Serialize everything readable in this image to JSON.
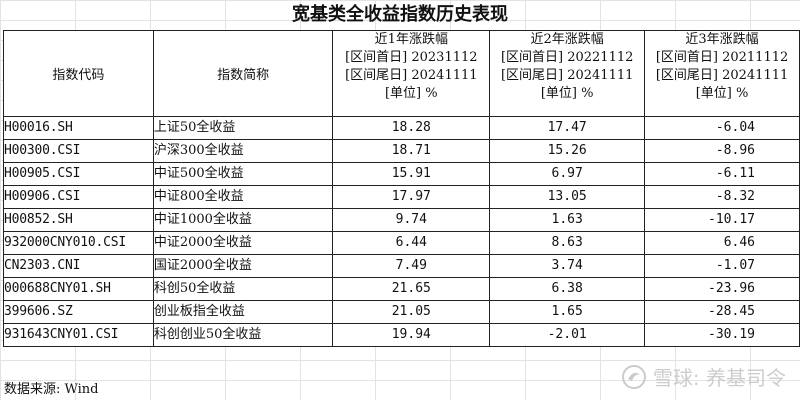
{
  "title": "宽基类全收益指数历史表现",
  "headers": {
    "code": "指数代码",
    "name": "指数简称",
    "periods": [
      {
        "label": "近1年涨跌幅",
        "start": "[区间首日] 20231112",
        "end": "[区间尾日] 20241111",
        "unit": "[单位] %"
      },
      {
        "label": "近2年涨跌幅",
        "start": "[区间首日] 20221112",
        "end": "[区间尾日] 20241111",
        "unit": "[单位] %"
      },
      {
        "label": "近3年涨跌幅",
        "start": "[区间首日] 20211112",
        "end": "[区间尾日] 20241111",
        "unit": "[单位] %"
      }
    ]
  },
  "rows": [
    {
      "code": "H00016.SH",
      "name": "上证50全收益",
      "y1": "18.28",
      "y2": "17.47",
      "y3": "-6.04"
    },
    {
      "code": "H00300.CSI",
      "name": "沪深300全收益",
      "y1": "18.71",
      "y2": "15.26",
      "y3": "-8.96"
    },
    {
      "code": "H00905.CSI",
      "name": "中证500全收益",
      "y1": "15.91",
      "y2": "6.97",
      "y3": "-6.11"
    },
    {
      "code": "H00906.CSI",
      "name": "中证800全收益",
      "y1": "17.97",
      "y2": "13.05",
      "y3": "-8.32"
    },
    {
      "code": "H00852.SH",
      "name": "中证1000全收益",
      "y1": "9.74",
      "y2": "1.63",
      "y3": "-10.17"
    },
    {
      "code": "932000CNY010.CSI",
      "name": "中证2000全收益",
      "y1": "6.44",
      "y2": "8.63",
      "y3": "6.46"
    },
    {
      "code": "CN2303.CNI",
      "name": "国证2000全收益",
      "y1": "7.49",
      "y2": "3.74",
      "y3": "-1.07"
    },
    {
      "code": "000688CNY01.SH",
      "name": "科创50全收益",
      "y1": "21.65",
      "y2": "6.38",
      "y3": "-23.96"
    },
    {
      "code": "399606.SZ",
      "name": "创业板指全收益",
      "y1": "21.05",
      "y2": "1.65",
      "y3": "-28.45"
    },
    {
      "code": "931643CNY01.CSI",
      "name": "科创创业50全收益",
      "y1": "19.94",
      "y2": "-2.01",
      "y3": "-30.19"
    }
  ],
  "source": "数据来源: Wind",
  "watermark": "雪球: 养基司令",
  "watermark_icon": "snowball-logo-icon"
}
